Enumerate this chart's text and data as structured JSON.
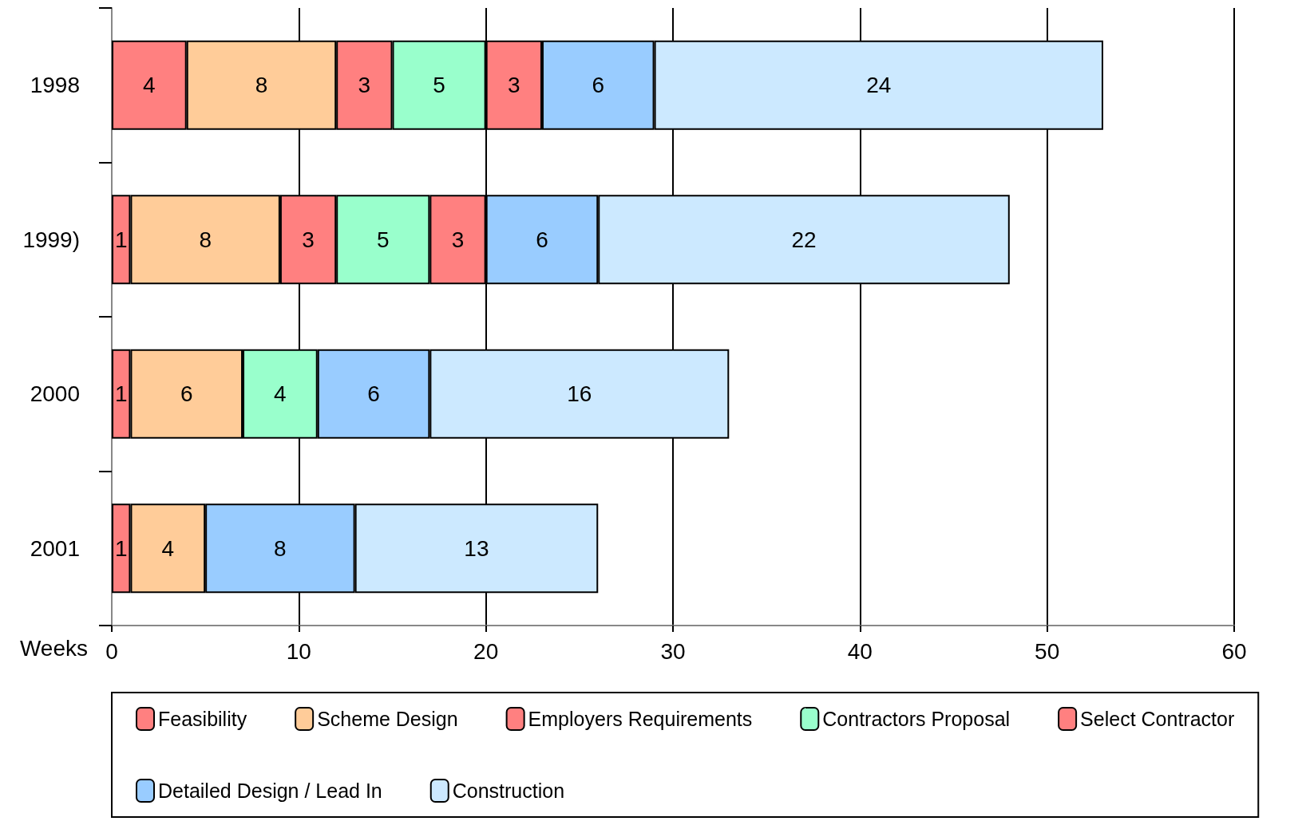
{
  "chart_data": {
    "type": "bar",
    "orientation": "horizontal",
    "stacked": true,
    "data_labels": true,
    "grid": "x",
    "legend": "bottom",
    "xlabel": "Weeks",
    "categories": [
      "1998",
      "1999)",
      "2000",
      "2001"
    ],
    "xlim": [
      0,
      60
    ],
    "xticks": [
      0,
      10,
      20,
      30,
      40,
      50,
      60
    ],
    "series": [
      {
        "name": "Feasibility",
        "color": "#ff8080",
        "values": [
          4,
          1,
          1,
          1
        ]
      },
      {
        "name": "Scheme Design",
        "color": "#ffcc99",
        "values": [
          8,
          8,
          6,
          4
        ]
      },
      {
        "name": "Employers Requirements",
        "color": "#ff8080",
        "values": [
          3,
          3,
          null,
          null
        ]
      },
      {
        "name": "Contractors Proposal",
        "color": "#99ffcc",
        "values": [
          5,
          5,
          4,
          null
        ]
      },
      {
        "name": "Select Contractor",
        "color": "#ff8080",
        "values": [
          3,
          3,
          null,
          null
        ]
      },
      {
        "name": "Detailed Design / Lead In",
        "color": "#99ccff",
        "values": [
          6,
          6,
          6,
          8
        ]
      },
      {
        "name": "Construction",
        "color": "#cce9ff",
        "values": [
          24,
          22,
          16,
          13
        ]
      }
    ]
  }
}
